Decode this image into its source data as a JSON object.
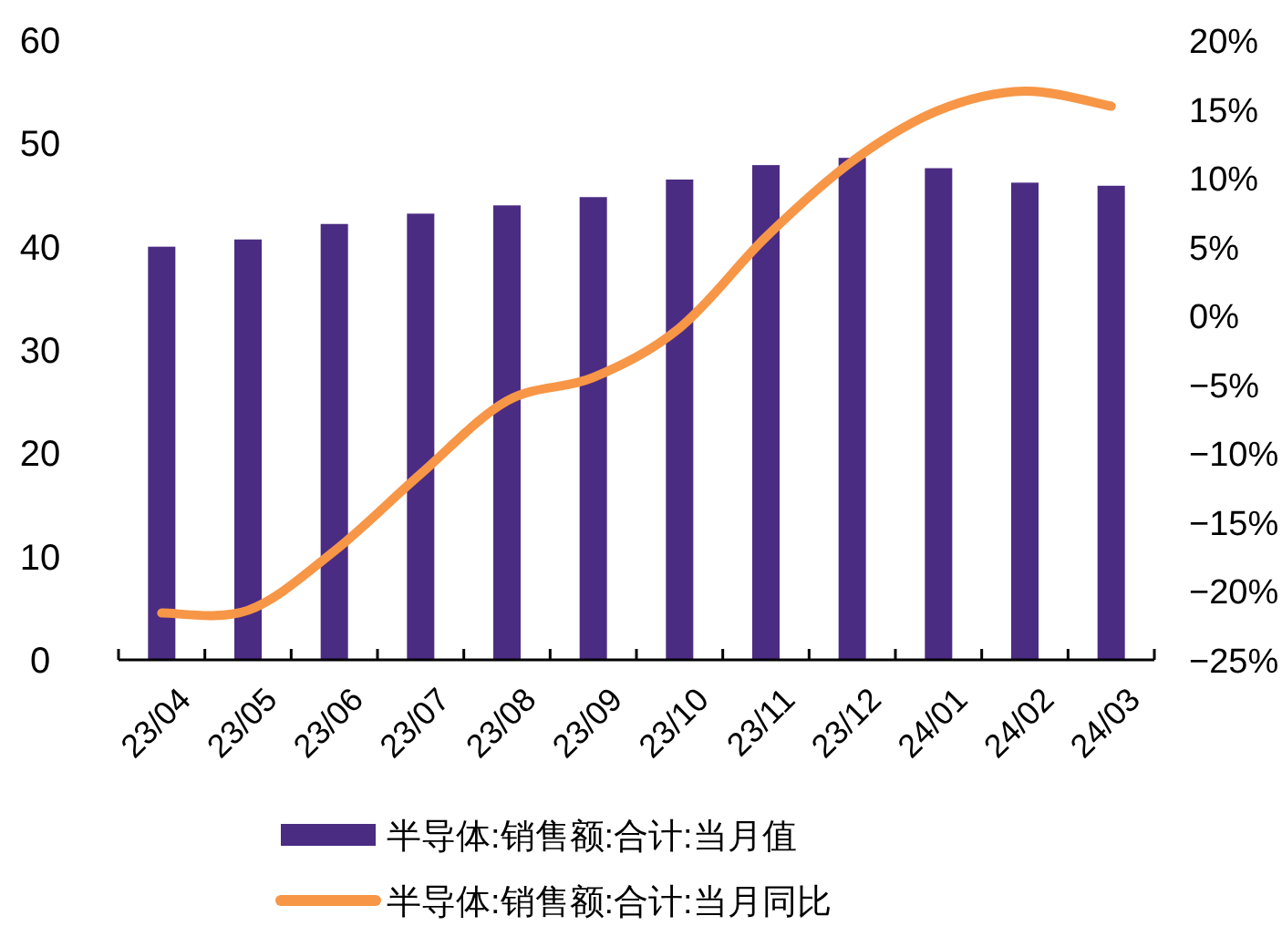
{
  "chart_data": {
    "type": "bar",
    "categories": [
      "23/04",
      "23/05",
      "23/06",
      "23/07",
      "23/08",
      "23/09",
      "23/10",
      "23/11",
      "23/12",
      "24/01",
      "24/02",
      "24/03"
    ],
    "series": [
      {
        "name": "半导体:销售额:合计:当月值",
        "color": "#4b2c83",
        "values": [
          40.0,
          40.7,
          42.2,
          43.2,
          44.0,
          44.8,
          46.5,
          47.9,
          48.6,
          47.6,
          46.2,
          45.9
        ]
      },
      {
        "name": "半导体:销售额:合计:当月同比",
        "color": "#f79646",
        "type": "line",
        "axis": "y2",
        "values": [
          -21.6,
          -21.4,
          -17.1,
          -11.5,
          -6.2,
          -4.5,
          -0.9,
          5.7,
          11.2,
          14.9,
          16.3,
          15.2
        ]
      }
    ],
    "ylim": [
      0,
      60
    ],
    "yticks": [
      0,
      10,
      20,
      30,
      40,
      50,
      60
    ],
    "y2lim": [
      -25,
      20
    ],
    "y2ticks": [
      {
        "value": -25,
        "label": "−25%"
      },
      {
        "value": -20,
        "label": "−20%"
      },
      {
        "value": -15,
        "label": "−15%"
      },
      {
        "value": -10,
        "label": "−10%"
      },
      {
        "value": -5,
        "label": "−5%"
      },
      {
        "value": 0,
        "label": "0%"
      },
      {
        "value": 5,
        "label": "5%"
      },
      {
        "value": 10,
        "label": "10%"
      },
      {
        "value": 15,
        "label": "15%"
      },
      {
        "value": 20,
        "label": "20%"
      }
    ],
    "legend": "bottom"
  }
}
